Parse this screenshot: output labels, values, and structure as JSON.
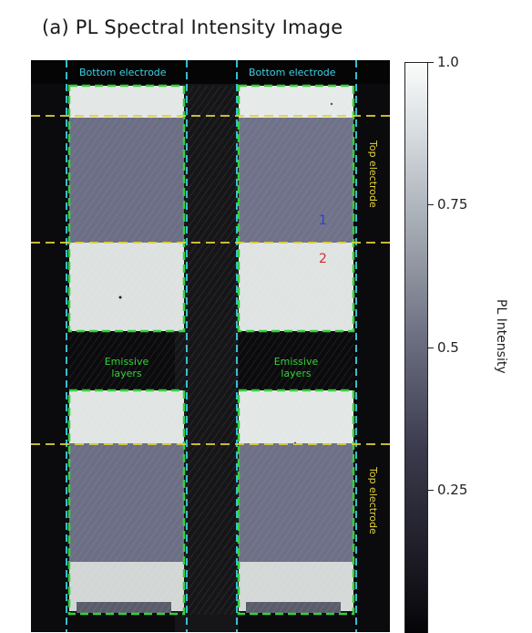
{
  "title": "(a) PL Spectral Intensity Image",
  "chart_data": {
    "type": "heatmap",
    "title": "(a) PL Spectral Intensity Image",
    "colorbar": {
      "label": "PL Intensity",
      "range": [
        0,
        1.0
      ],
      "ticks": [
        {
          "value": 1.0,
          "label": "1.0"
        },
        {
          "value": 0.75,
          "label": "0.75"
        },
        {
          "value": 0.5,
          "label": "0.5"
        },
        {
          "value": 0.25,
          "label": "0.25"
        }
      ]
    },
    "annotations": {
      "bottom_electrode": [
        "Bottom electrode",
        "Bottom electrode"
      ],
      "top_electrode": [
        "Top electrode",
        "Top electrode"
      ],
      "emissive_layers": [
        "Emissive\nlayers",
        "Emissive\nlayers"
      ],
      "markers": [
        "1",
        "2"
      ]
    },
    "colors": {
      "bottom_electrode": "#3fd0e6",
      "top_electrode": "#e3d23a",
      "emissive_layers": "#35d13a",
      "marker_1": "#2a3fd8",
      "marker_2": "#d82a2a"
    }
  }
}
